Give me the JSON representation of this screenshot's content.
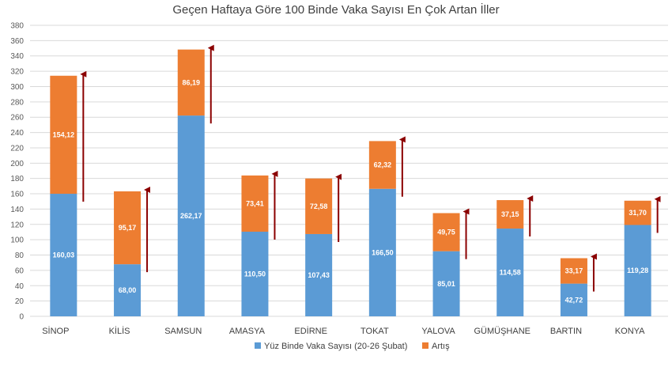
{
  "chart_data": {
    "type": "bar",
    "stacked": true,
    "title": "Geçen Haftaya Göre 100 Binde Vaka Sayısı En Çok Artan İller",
    "categories": [
      "SİNOP",
      "KİLİS",
      "SAMSUN",
      "AMASYA",
      "EDİRNE",
      "TOKAT",
      "YALOVA",
      "GÜMÜŞHANE",
      "BARTIN",
      "KONYA"
    ],
    "series": [
      {
        "name": "Yüz Binde Vaka Sayısı (20-26 Şubat)",
        "color": "#5B9BD5",
        "values": [
          160.03,
          68.0,
          262.17,
          110.5,
          107.43,
          166.5,
          85.01,
          114.58,
          42.72,
          119.28
        ],
        "labels": [
          "160,03",
          "68,00",
          "262,17",
          "110,50",
          "107,43",
          "166,50",
          "85,01",
          "114,58",
          "42,72",
          "119,28"
        ]
      },
      {
        "name": "Artış",
        "color": "#ED7D31",
        "values": [
          154.12,
          95.17,
          86.19,
          73.41,
          72.58,
          62.32,
          49.75,
          37.15,
          33.17,
          31.7
        ],
        "labels": [
          "154,12",
          "95,17",
          "86,19",
          "73,41",
          "72,58",
          "62,32",
          "49,75",
          "37,15",
          "33,17",
          "31,70"
        ]
      }
    ],
    "ylim": [
      0,
      380
    ],
    "yticks": [
      0,
      20,
      40,
      60,
      80,
      100,
      120,
      140,
      160,
      180,
      200,
      220,
      240,
      260,
      280,
      300,
      320,
      340,
      360,
      380
    ],
    "grid": true,
    "legend": "bottom-center",
    "arrow_color": "#8B0000",
    "gridline_color": "#D9D9D9"
  }
}
